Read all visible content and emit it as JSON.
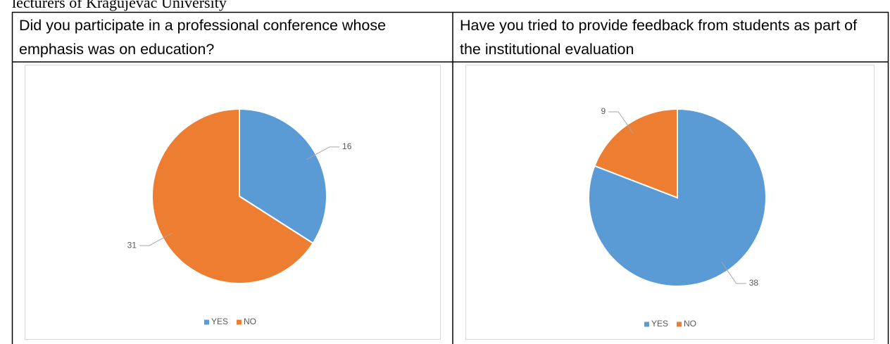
{
  "caption": "lecturers of Kragujevac University",
  "table": {
    "headers": [
      "Did you participate in a professional conference whose emphasis was on education?",
      "Have you tried to provide feedback from students as part of the institutional evaluation"
    ]
  },
  "chart_data": [
    {
      "type": "pie",
      "categories": [
        "YES",
        "NO"
      ],
      "values": [
        16,
        31
      ],
      "colors": [
        "#5b9bd5",
        "#ed7d31"
      ]
    },
    {
      "type": "pie",
      "categories": [
        "YES",
        "NO"
      ],
      "values": [
        38,
        9
      ],
      "colors": [
        "#5b9bd5",
        "#ed7d31"
      ]
    }
  ]
}
